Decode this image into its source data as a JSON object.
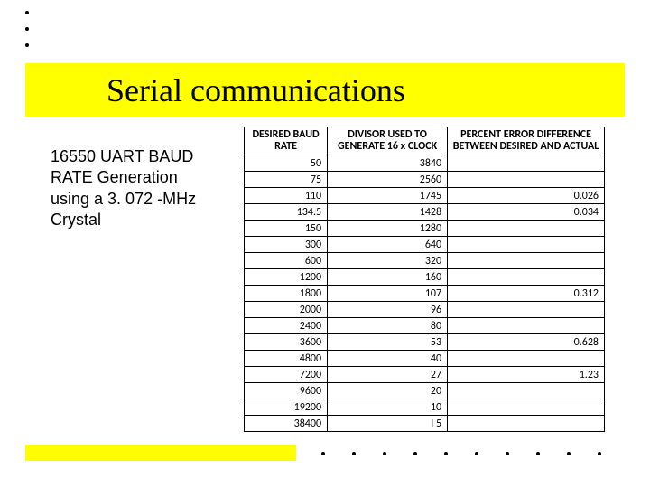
{
  "title": "Serial communications",
  "description": "16550 UART BAUD RATE Generation using a 3. 072 -MHz Crystal",
  "table": {
    "headers": {
      "col1": "DESIRED BAUD RATE",
      "col2": "DIVISOR USED TO GENERATE 16 x CLOCK",
      "col3": "PERCENT ERROR DIFFERENCE BETWEEN DESIRED AND ACTUAL"
    },
    "rows": [
      {
        "baud": "50",
        "divisor": "3840",
        "error": ""
      },
      {
        "baud": "75",
        "divisor": "2560",
        "error": ""
      },
      {
        "baud": "110",
        "divisor": "1745",
        "error": "0.026"
      },
      {
        "baud": "134.5",
        "divisor": "1428",
        "error": "0.034"
      },
      {
        "baud": "150",
        "divisor": "1280",
        "error": ""
      },
      {
        "baud": "300",
        "divisor": "640",
        "error": ""
      },
      {
        "baud": "600",
        "divisor": "320",
        "error": ""
      },
      {
        "baud": "1200",
        "divisor": "160",
        "error": ""
      },
      {
        "baud": "1800",
        "divisor": "107",
        "error": "0.312"
      },
      {
        "baud": "2000",
        "divisor": "96",
        "error": ""
      },
      {
        "baud": "2400",
        "divisor": "80",
        "error": ""
      },
      {
        "baud": "3600",
        "divisor": "53",
        "error": "0.628"
      },
      {
        "baud": "4800",
        "divisor": "40",
        "error": ""
      },
      {
        "baud": "7200",
        "divisor": "27",
        "error": "1.23"
      },
      {
        "baud": "9600",
        "divisor": "20",
        "error": ""
      },
      {
        "baud": "19200",
        "divisor": "10",
        "error": ""
      },
      {
        "baud": "38400",
        "divisor": "I 5",
        "error": ""
      }
    ]
  },
  "colors": {
    "highlight": "#ffff00",
    "text": "#000000",
    "border": "#000000",
    "background": "#ffffff"
  }
}
